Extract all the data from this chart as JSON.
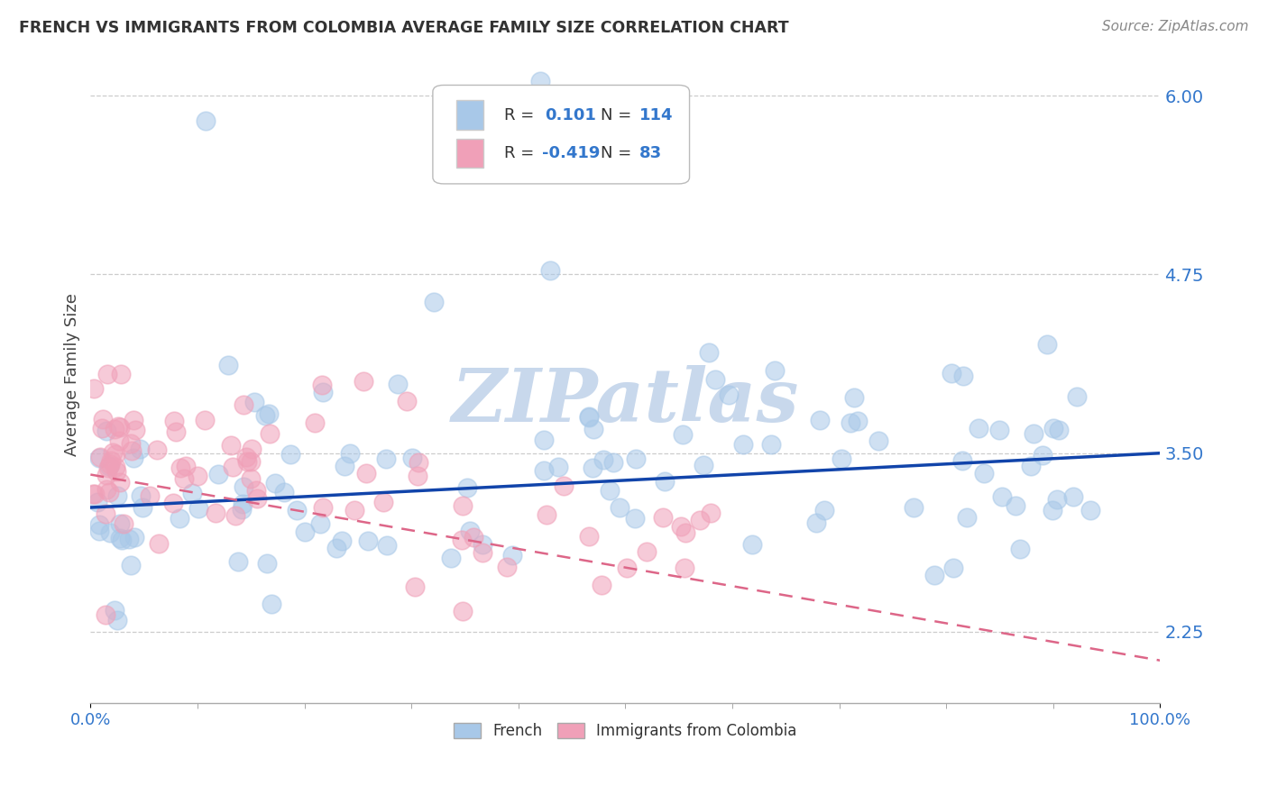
{
  "title": "FRENCH VS IMMIGRANTS FROM COLOMBIA AVERAGE FAMILY SIZE CORRELATION CHART",
  "source": "Source: ZipAtlas.com",
  "ylabel": "Average Family Size",
  "xlim": [
    0,
    100
  ],
  "ylim": [
    1.75,
    6.35
  ],
  "yticks": [
    2.25,
    3.5,
    4.75,
    6.0
  ],
  "blue_color": "#A8C8E8",
  "pink_color": "#F0A0B8",
  "blue_line_color": "#1144AA",
  "pink_line_color": "#DD6688",
  "watermark": "ZIPatlas",
  "watermark_color": "#C8D8EC",
  "blue_R": 0.101,
  "blue_N": 114,
  "pink_R": -0.419,
  "pink_N": 83,
  "grid_color": "#CCCCCC",
  "background_color": "#FFFFFF",
  "title_color": "#333333",
  "axis_label_color": "#444444",
  "tick_color": "#3377CC",
  "blue_line_y0": 3.12,
  "blue_line_y1": 3.5,
  "pink_line_y0": 3.35,
  "pink_line_y1": 2.05
}
